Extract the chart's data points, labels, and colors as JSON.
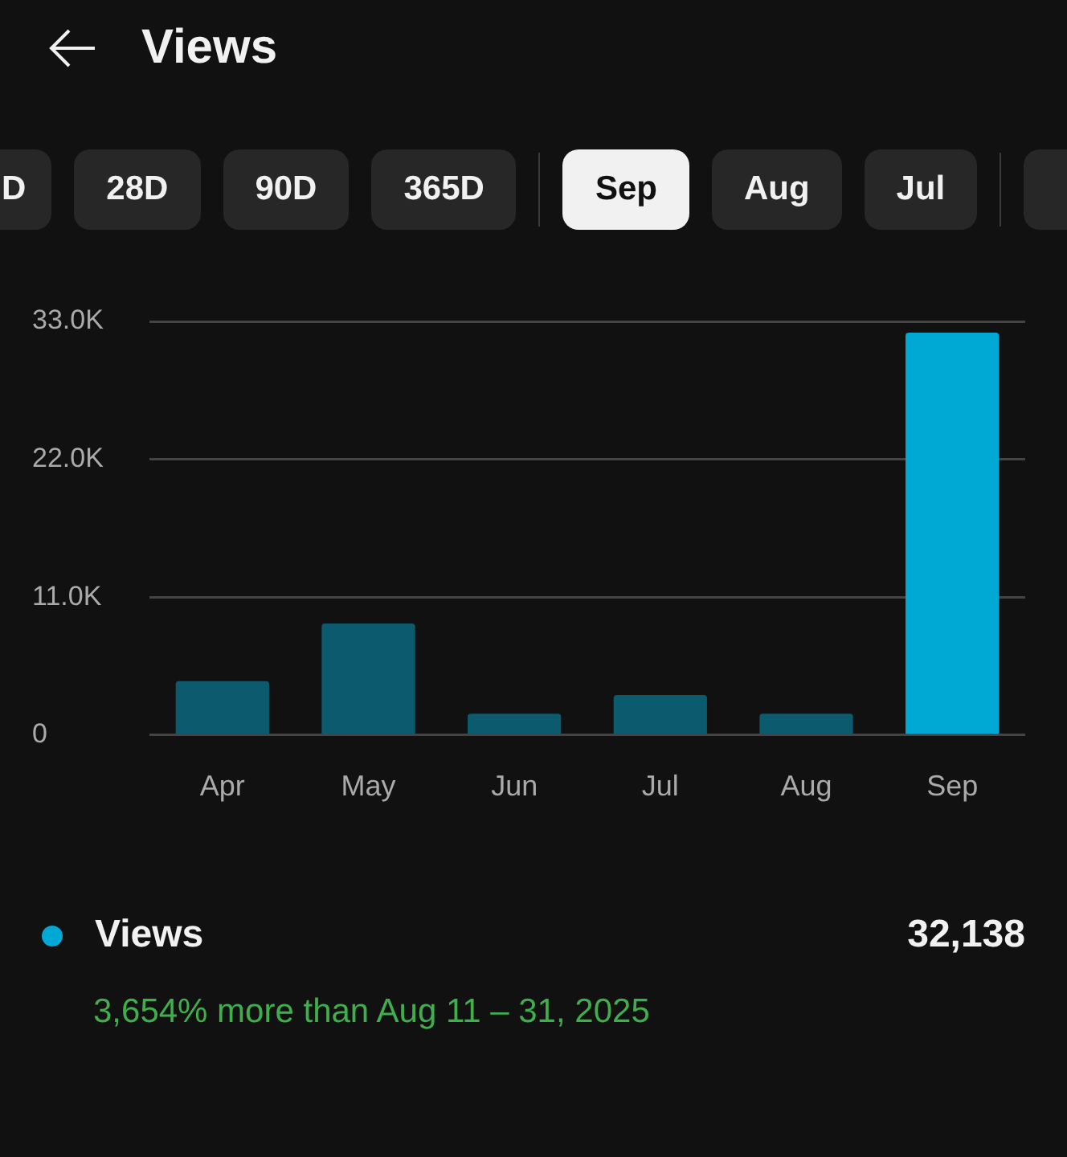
{
  "chart_data": {
    "type": "bar",
    "title": "Views",
    "categories": [
      "Apr",
      "May",
      "Jun",
      "Jul",
      "Aug",
      "Sep"
    ],
    "series": [
      {
        "name": "Views",
        "color": "#00a8d4",
        "colors": [
          "#0b5a6e",
          "#0b5a6e",
          "#0b5a6e",
          "#0b5a6e",
          "#0b5a6e",
          "#00a8d4"
        ],
        "values": [
          4300,
          8900,
          1700,
          3200,
          1700,
          32100
        ]
      }
    ],
    "ylim": [
      0,
      33000
    ],
    "yticks": [
      {
        "value": 0,
        "label": "0"
      },
      {
        "value": 11000,
        "label": "11.0K"
      },
      {
        "value": 22000,
        "label": "22.0K"
      },
      {
        "value": 33000,
        "label": "33.0K"
      }
    ],
    "grid": "y",
    "legend": "bottom",
    "annotations": [
      "D",
      "28D",
      "90D",
      "365D",
      "Sep",
      "Aug",
      "Jul",
      "32,138",
      "3,654% more than Aug 11 – 31, 2025"
    ]
  }
}
